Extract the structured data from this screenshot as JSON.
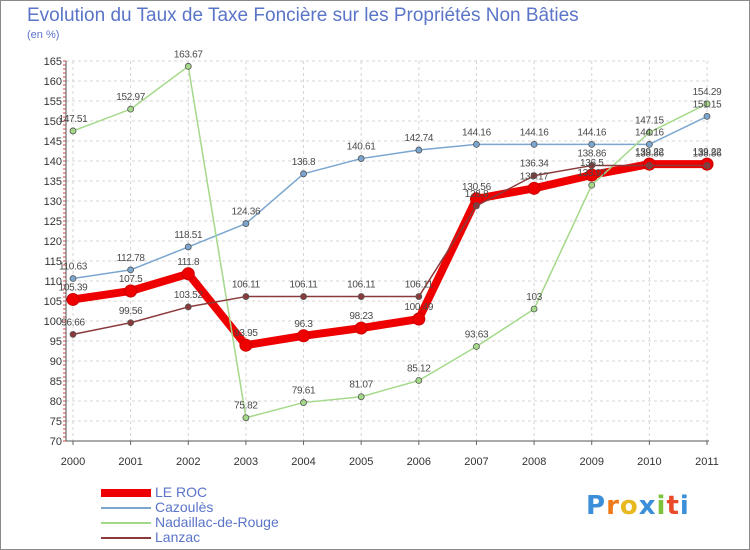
{
  "title": "Evolution du Taux de Taxe Foncière sur les Propriétés Non Bâties",
  "subtitle": "(en %)",
  "logo": {
    "letters": [
      "P",
      "r",
      "o",
      "x",
      "i",
      "t",
      "i"
    ],
    "colors": [
      "#3b8fd9",
      "#f07a1a",
      "#e8b820",
      "#3b8fd9",
      "#7cc23a",
      "#e84a2a",
      "#3b8fd9"
    ]
  },
  "chart_data": {
    "type": "line",
    "title": "Evolution du Taux de Taxe Foncière sur les Propriétés Non Bâties",
    "ylabel": "(en %)",
    "xlabel": "",
    "ylim": [
      70,
      165
    ],
    "yticks": [
      70,
      75,
      80,
      85,
      90,
      95,
      100,
      105,
      110,
      115,
      120,
      125,
      130,
      135,
      140,
      145,
      150,
      155,
      160,
      165
    ],
    "categories": [
      "2000",
      "2001",
      "2002",
      "2003",
      "2004",
      "2005",
      "2006",
      "2007",
      "2008",
      "2009",
      "2010",
      "2011"
    ],
    "grid": true,
    "series": [
      {
        "name": "LE ROC",
        "color": "#ee0000",
        "width": 8,
        "radius": 6,
        "values": [
          105.39,
          107.5,
          111.8,
          93.95,
          96.3,
          98.23,
          100.49,
          130.56,
          133.17,
          136.5,
          139.22,
          139.22
        ],
        "labels": [
          "105.39",
          "107.5",
          "111.8",
          "93.95",
          "96.3",
          "98.23",
          "100.49",
          "130.56",
          "133.17",
          "136.5",
          "139.22",
          "139.22"
        ]
      },
      {
        "name": "Cazoulès",
        "color": "#7aa6d0",
        "width": 1.5,
        "radius": 3,
        "values": [
          110.63,
          112.78,
          118.51,
          124.36,
          136.8,
          140.61,
          142.74,
          144.16,
          144.16,
          144.16,
          144.16,
          151.15
        ],
        "labels": [
          "110.63",
          "112.78",
          "118.51",
          "124.36",
          "136.8",
          "140.61",
          "142.74",
          "144.16",
          "144.16",
          "144.16",
          "144.16",
          "151.15"
        ]
      },
      {
        "name": "Nadaillac-de-Rouge",
        "color": "#a4d98a",
        "width": 1.5,
        "radius": 3,
        "values": [
          147.51,
          152.97,
          163.67,
          75.82,
          79.61,
          81.07,
          85.12,
          93.63,
          103,
          133.97,
          147.15,
          154.29
        ],
        "labels": [
          "147.51",
          "152.97",
          "163.67",
          "75.82",
          "79.61",
          "81.07",
          "85.12",
          "93.63",
          "103",
          "133.97",
          "147.15",
          "154.29"
        ]
      },
      {
        "name": "Lanzac",
        "color": "#8a3a3a",
        "width": 1.5,
        "radius": 3,
        "values": [
          96.66,
          99.56,
          103.52,
          106.11,
          106.11,
          106.11,
          106.11,
          128.8,
          136.34,
          138.86,
          138.86,
          138.86
        ],
        "labels": [
          "96.66",
          "99.56",
          "103.52",
          "106.11",
          "106.11",
          "106.11",
          "106.11",
          "128.8",
          "136.34",
          "138.86",
          "138.86",
          "138.86"
        ]
      }
    ]
  }
}
